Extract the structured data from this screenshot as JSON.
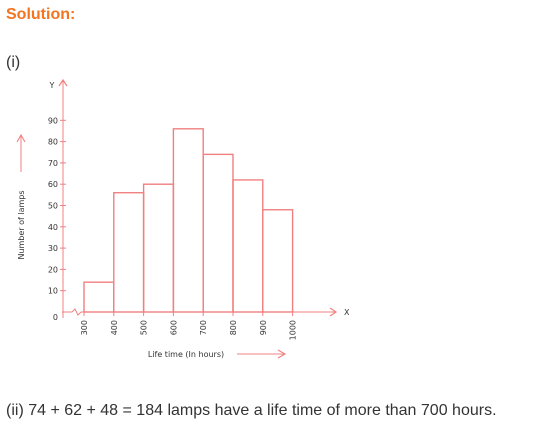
{
  "heading": "Solution:",
  "part_i": "(i)",
  "answer_text": "(ii) 74 + 62 + 48 = 184 lamps have a life time of more than 700 hours.",
  "colors": {
    "heading": "#f4741f",
    "bars": "#f08080",
    "axes": "#f08080",
    "text": "#333333"
  },
  "chart_data": {
    "type": "bar",
    "subtype": "histogram",
    "x_axis_letter": "X",
    "y_axis_letter": "Y",
    "xlabel": "Life time (In hours)",
    "ylabel": "Number of lamps",
    "x_ticks": [
      "300",
      "400",
      "500",
      "600",
      "700",
      "800",
      "900",
      "1000"
    ],
    "y_ticks": [
      "0",
      "10",
      "20",
      "30",
      "40",
      "50",
      "60",
      "70",
      "80",
      "90"
    ],
    "bins": [
      [
        300,
        400
      ],
      [
        400,
        500
      ],
      [
        500,
        600
      ],
      [
        600,
        700
      ],
      [
        700,
        800
      ],
      [
        800,
        900
      ],
      [
        900,
        1000
      ]
    ],
    "values": [
      14,
      56,
      60,
      86,
      74,
      62,
      48
    ],
    "xlim": [
      300,
      1000
    ],
    "ylim": [
      0,
      95
    ],
    "grid": false,
    "legend": "none"
  }
}
